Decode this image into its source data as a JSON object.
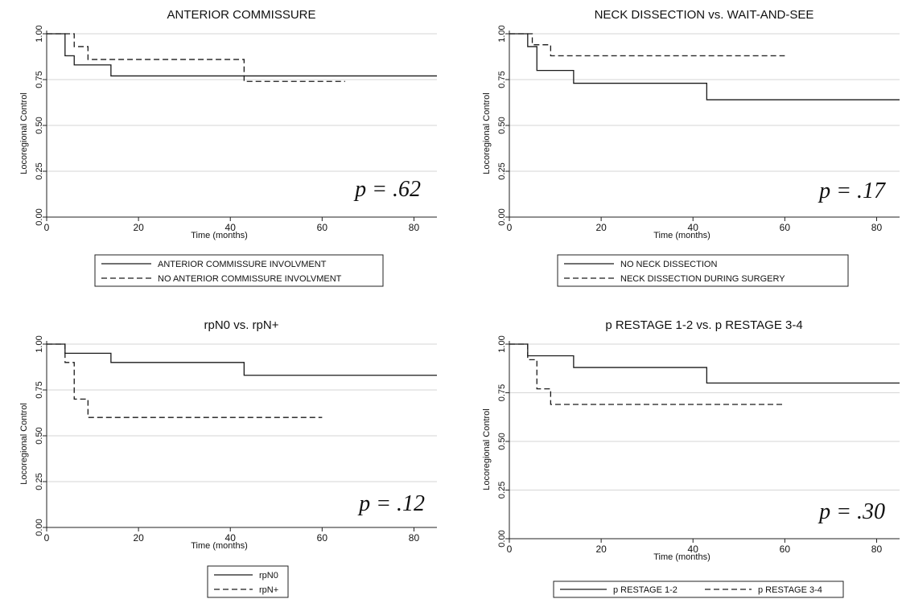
{
  "chart_data": [
    {
      "type": "line",
      "title": "ANTERIOR COMMISSURE",
      "xlabel": "Time (months)",
      "ylabel": "Locoregional Control",
      "xlim": [
        0,
        85
      ],
      "ylim": [
        0,
        1
      ],
      "xticks": [
        "0",
        "20",
        "40",
        "60",
        "80"
      ],
      "yticks": [
        "0.00",
        "0.25",
        "0.50",
        "0.75",
        "1.00"
      ],
      "grid": true,
      "legend_position": "below",
      "legend_layout": "stacked",
      "annotation": "p = .62",
      "series": [
        {
          "name": "ANTERIOR COMMISSURE INVOLVMENT",
          "style": "solid",
          "x": [
            0,
            4,
            6,
            14,
            85
          ],
          "y": [
            1.0,
            0.88,
            0.83,
            0.77,
            0.77
          ]
        },
        {
          "name": "NO ANTERIOR COMMISSURE INVOLVMENT",
          "style": "dashed",
          "x": [
            0,
            6,
            9,
            43,
            65
          ],
          "y": [
            1.0,
            0.93,
            0.86,
            0.74,
            0.74
          ]
        }
      ]
    },
    {
      "type": "line",
      "title": "NECK DISSECTION vs. WAIT-AND-SEE",
      "xlabel": "Time (months)",
      "ylabel": "Locoregional Control",
      "xlim": [
        0,
        85
      ],
      "ylim": [
        0,
        1
      ],
      "xticks": [
        "0",
        "20",
        "40",
        "60",
        "80"
      ],
      "yticks": [
        "0.00",
        "0.25",
        "0.50",
        "0.75",
        "1.00"
      ],
      "grid": true,
      "legend_position": "below",
      "legend_layout": "stacked",
      "annotation": "p = .17",
      "series": [
        {
          "name": "NO NECK DISSECTION",
          "style": "solid",
          "x": [
            0,
            4,
            6,
            14,
            43,
            85
          ],
          "y": [
            1.0,
            0.93,
            0.8,
            0.73,
            0.64,
            0.64
          ]
        },
        {
          "name": "NECK DISSECTION DURING SURGERY",
          "style": "dashed",
          "x": [
            0,
            5,
            9,
            60
          ],
          "y": [
            1.0,
            0.94,
            0.88,
            0.88
          ]
        }
      ]
    },
    {
      "type": "line",
      "title": "rpN0 vs. rpN+",
      "xlabel": "Time (months)",
      "ylabel": "Locoregional Control",
      "xlim": [
        0,
        85
      ],
      "ylim": [
        0,
        1
      ],
      "xticks": [
        "0",
        "20",
        "40",
        "60",
        "80"
      ],
      "yticks": [
        "0.00",
        "0.25",
        "0.50",
        "0.75",
        "1.00"
      ],
      "grid": true,
      "legend_position": "below",
      "legend_layout": "stacked",
      "annotation": "p = .12",
      "series": [
        {
          "name": "rpN0",
          "style": "solid",
          "x": [
            0,
            4,
            14,
            43,
            85
          ],
          "y": [
            1.0,
            0.95,
            0.9,
            0.83,
            0.83
          ]
        },
        {
          "name": "rpN+",
          "style": "dashed",
          "x": [
            0,
            4,
            6,
            9,
            60
          ],
          "y": [
            1.0,
            0.9,
            0.7,
            0.6,
            0.6
          ]
        }
      ]
    },
    {
      "type": "line",
      "title": "p RESTAGE 1-2 vs. p RESTAGE 3-4",
      "xlabel": "Time (months)",
      "ylabel": "Locoregional Control",
      "xlim": [
        0,
        85
      ],
      "ylim": [
        0,
        1
      ],
      "xticks": [
        "0",
        "20",
        "40",
        "60",
        "80"
      ],
      "yticks": [
        "0.00",
        "0.25",
        "0.50",
        "0.75",
        "1.00"
      ],
      "grid": true,
      "legend_position": "below",
      "legend_layout": "inline",
      "annotation": "p = .30",
      "series": [
        {
          "name": "p RESTAGE 1-2",
          "style": "solid",
          "x": [
            0,
            4,
            14,
            43,
            85
          ],
          "y": [
            1.0,
            0.94,
            0.88,
            0.8,
            0.8
          ]
        },
        {
          "name": "p RESTAGE 3-4",
          "style": "dashed",
          "x": [
            0,
            4,
            6,
            9,
            60
          ],
          "y": [
            1.0,
            0.92,
            0.77,
            0.69,
            0.69
          ]
        }
      ]
    }
  ]
}
